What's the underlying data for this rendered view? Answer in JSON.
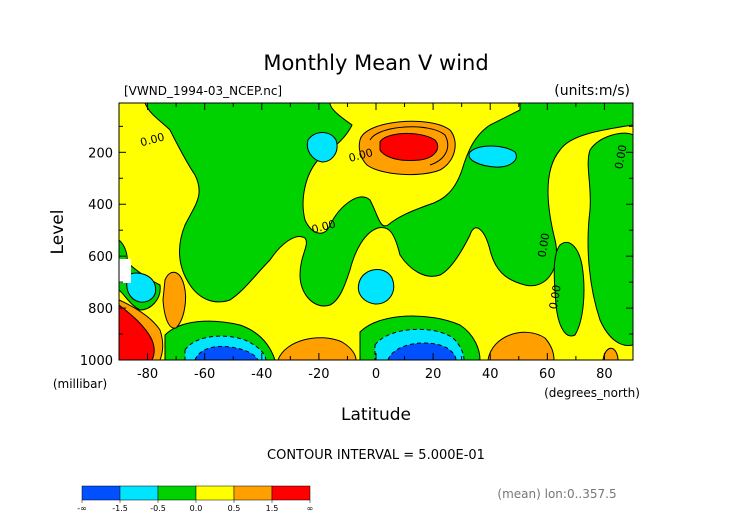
{
  "chart_data": {
    "type": "heatmap",
    "title": "Monthly Mean V wind",
    "subtitle_left": "[VWND_1994-03_NCEP.nc]",
    "subtitle_right": "(units:m/s)",
    "xlabel": "Latitude",
    "xunit": "(degrees_north)",
    "ylabel": "Level",
    "yunit": "(millibar)",
    "xlim": [
      -90,
      90
    ],
    "ylim": [
      1000,
      10
    ],
    "x_ticks": [
      -80,
      -60,
      -40,
      -20,
      0,
      20,
      40,
      60,
      80
    ],
    "y_ticks": [
      200,
      400,
      600,
      800,
      1000
    ],
    "contour_interval_text": "CONTOUR INTERVAL = 5.000E-01",
    "contour_labels": [
      {
        "text": "0.00",
        "x": -78,
        "y": 165
      },
      {
        "text": "0.00",
        "x": -5,
        "y": 225
      },
      {
        "text": "0.00",
        "x": -18,
        "y": 500
      },
      {
        "text": "0.00",
        "x": 60,
        "y": 560
      },
      {
        "text": "0.00",
        "x": 64,
        "y": 760
      },
      {
        "text": "0.00",
        "x": 87,
        "y": 220
      }
    ],
    "regions": [
      {
        "level": "pos_high",
        "x": 5,
        "y": 165
      },
      {
        "level": "neg_mid",
        "x": -18,
        "y": 180
      },
      {
        "level": "neg_mid",
        "x": 40,
        "y": 210
      },
      {
        "level": "neg_mid",
        "x": 0,
        "y": 700
      },
      {
        "level": "neg_strong",
        "x": -55,
        "y": 950
      },
      {
        "level": "neg_strong",
        "x": 15,
        "y": 950
      },
      {
        "level": "pos_high",
        "x": -85,
        "y": 940
      },
      {
        "level": "pos_mid",
        "x": 50,
        "y": 950
      },
      {
        "level": "pos_mid",
        "x": -20,
        "y": 960
      }
    ],
    "colorbar": {
      "labels": [
        "-∞",
        "-1.5",
        "-0.5",
        "0.0",
        "0.5",
        "1.5",
        "∞"
      ],
      "colors": [
        "#0050ff",
        "#00e5ff",
        "#00d200",
        "#ffff00",
        "#ffa000",
        "#ff0000"
      ]
    },
    "footer_note": "(mean) lon:0..357.5"
  }
}
